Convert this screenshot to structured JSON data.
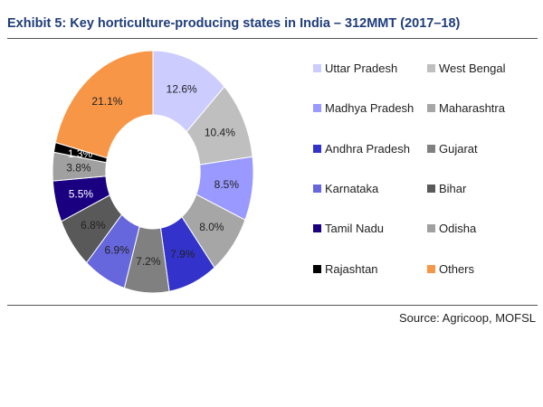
{
  "chart_data": {
    "type": "pie",
    "donut": true,
    "title": "Exhibit 5: Key horticulture-producing states in India – 312MMT (2017–18)",
    "categories": [
      "Uttar Pradesh",
      "West Bengal",
      "Madhya Pradesh",
      "Maharashtra",
      "Andhra Pradesh",
      "Gujarat",
      "Karnataka",
      "Bihar",
      "Tamil Nadu",
      "Odisha",
      "Rajashtan",
      "Others"
    ],
    "values": [
      12.6,
      10.4,
      8.5,
      8.0,
      7.9,
      7.2,
      6.9,
      6.8,
      5.5,
      3.8,
      1.3,
      21.1
    ],
    "labels": [
      "12.6%",
      "10.4%",
      "8.5%",
      "8.0%",
      "7.9%",
      "7.2%",
      "6.9%",
      "6.8%",
      "5.5%",
      "3.8%",
      "1.3%",
      "21.1%"
    ],
    "colors": [
      "#ccccff",
      "#bfbfbf",
      "#9999ff",
      "#a6a6a6",
      "#3333cc",
      "#808080",
      "#6666dd",
      "#595959",
      "#1a0080",
      "#a0a0a0",
      "#000000",
      "#f79646"
    ],
    "label_colors": [
      "#222",
      "#222",
      "#222",
      "#222",
      "#222",
      "#222",
      "#222",
      "#222",
      "#fff",
      "#222",
      "#fff",
      "#222"
    ],
    "legend_placement": "right",
    "source": "Source: Agricoop, MOFSL"
  }
}
